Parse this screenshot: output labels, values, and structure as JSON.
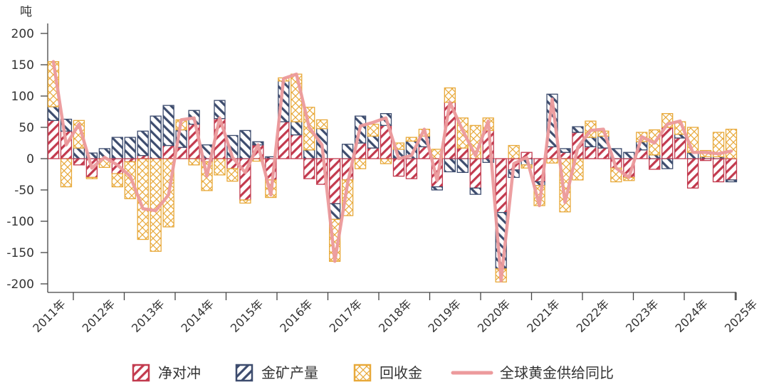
{
  "chart_data": {
    "type": "bar",
    "stacked": true,
    "title": "",
    "ylabel": "吨",
    "xlabel": "",
    "ylim": [
      -200,
      200
    ],
    "yticks": [
      200,
      150,
      100,
      50,
      0,
      -50,
      -100,
      -150,
      -200
    ],
    "year_labels": [
      "2011年",
      "2012年",
      "2013年",
      "2014年",
      "2015年",
      "2016年",
      "2017年",
      "2018年",
      "2019年",
      "2020年",
      "2021年",
      "2022年",
      "2023年",
      "2024年",
      "2025年"
    ],
    "legend_position": "bottom",
    "colors": {
      "net_hedging": "#c23a4e",
      "mine_production": "#3d4c6e",
      "recycled": "#e8a93a",
      "total_line": "#ec9a9c"
    },
    "categories": [
      "2011Q1",
      "2011Q2",
      "2011Q3",
      "2011Q4",
      "2012Q1",
      "2012Q2",
      "2012Q3",
      "2012Q4",
      "2013Q1",
      "2013Q2",
      "2013Q3",
      "2013Q4",
      "2014Q1",
      "2014Q2",
      "2014Q3",
      "2014Q4",
      "2015Q1",
      "2015Q2",
      "2015Q3",
      "2015Q4",
      "2016Q1",
      "2016Q2",
      "2016Q3",
      "2016Q4",
      "2017Q1",
      "2017Q2",
      "2017Q3",
      "2017Q4",
      "2018Q1",
      "2018Q2",
      "2018Q3",
      "2018Q4",
      "2019Q1",
      "2019Q2",
      "2019Q3",
      "2019Q4",
      "2020Q1",
      "2020Q2",
      "2020Q3",
      "2020Q4",
      "2021Q1",
      "2021Q2",
      "2021Q3",
      "2021Q4",
      "2022Q1",
      "2022Q2",
      "2022Q3",
      "2022Q4",
      "2023Q1",
      "2023Q2",
      "2023Q3",
      "2023Q4",
      "2024Q1",
      "2024Q2"
    ],
    "series": [
      {
        "name": "净对冲",
        "kind": "bar",
        "values": [
          61,
          44,
          -10,
          -30,
          0,
          -24,
          -5,
          5,
          0,
          21,
          18,
          55,
          -5,
          64,
          -16,
          -66,
          22,
          -34,
          59,
          38,
          -32,
          -41,
          -72,
          -34,
          25,
          17,
          53,
          -28,
          -32,
          19,
          -45,
          90,
          17,
          -47,
          45,
          -86,
          -18,
          10,
          -37,
          19,
          10,
          42,
          19,
          17,
          -15,
          -30,
          14,
          -17,
          50,
          33,
          -47,
          -3,
          -37,
          -34
        ]
      },
      {
        "name": "金矿产量",
        "kind": "bar",
        "values": [
          22,
          19,
          17,
          9,
          16,
          34,
          34,
          39,
          68,
          64,
          28,
          22,
          22,
          29,
          37,
          45,
          5,
          3,
          65,
          21,
          14,
          48,
          -25,
          23,
          43,
          19,
          19,
          15,
          28,
          17,
          -5,
          -21,
          -22,
          -10,
          -6,
          -90,
          -12,
          -10,
          -6,
          84,
          6,
          9,
          15,
          19,
          16,
          10,
          13,
          6,
          -16,
          6,
          10,
          3,
          3,
          -3
        ]
      },
      {
        "name": "回收金",
        "kind": "bar",
        "values": [
          72,
          -45,
          44,
          -2,
          -14,
          -21,
          -59,
          -129,
          -148,
          -109,
          16,
          -10,
          -46,
          -26,
          -20,
          -5,
          -4,
          -28,
          5,
          76,
          68,
          14,
          -67,
          -57,
          -16,
          19,
          -8,
          10,
          6,
          11,
          15,
          23,
          48,
          53,
          20,
          -21,
          21,
          -5,
          -32,
          -7,
          -85,
          -34,
          26,
          8,
          -22,
          -5,
          15,
          40,
          22,
          20,
          40,
          10,
          39,
          47
        ]
      },
      {
        "name": "全球黄金供给同比",
        "kind": "line",
        "values": [
          155,
          22,
          55,
          -15,
          2,
          -10,
          -28,
          -80,
          -83,
          -58,
          62,
          65,
          -28,
          65,
          2,
          -22,
          22,
          -58,
          128,
          135,
          50,
          22,
          -164,
          -40,
          52,
          58,
          65,
          0,
          5,
          47,
          -35,
          90,
          45,
          5,
          60,
          -195,
          -8,
          2,
          -75,
          95,
          -70,
          18,
          45,
          47,
          -15,
          -30,
          35,
          25,
          55,
          60,
          10,
          10,
          8,
          12
        ]
      }
    ]
  }
}
